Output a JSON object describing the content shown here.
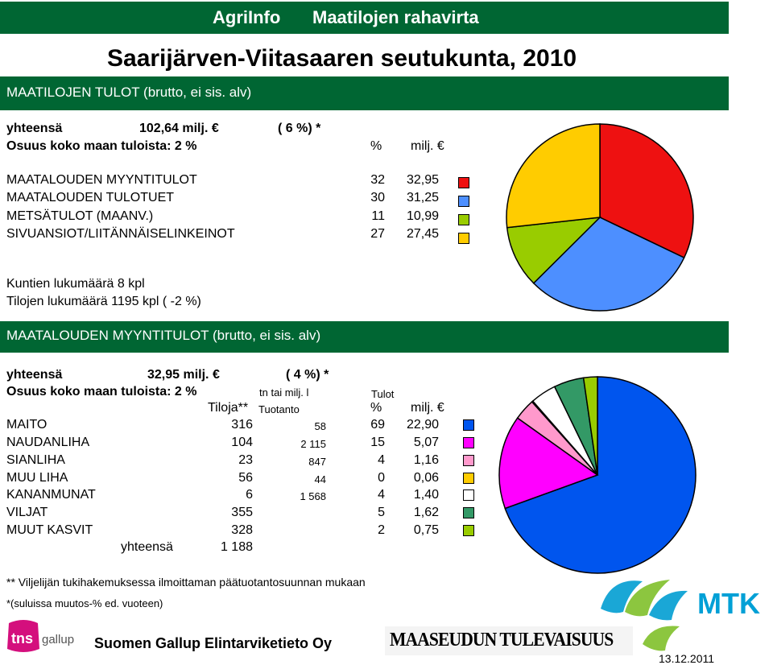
{
  "header": {
    "brand": "AgriInfo",
    "title": "Maatilojen rahavirta",
    "region": "Saarijärven-Viitasaaren seutukunta, 2010"
  },
  "income": {
    "banner": "MAATILOJEN TULOT (brutto, ei sis. alv)",
    "total_label": "yhteensä",
    "total_value": "102,64 milj. €",
    "total_change": "( 6 %) *",
    "share_label": "Osuus koko maan tuloista: 2 %",
    "col_pct": "%",
    "col_value": "milj. €",
    "rows": [
      {
        "label": "MAATALOUDEN MYYNTITULOT",
        "pct": "32",
        "value": "32,95",
        "color": "#ee1111"
      },
      {
        "label": "MAATALOUDEN TULOTUET",
        "pct": "30",
        "value": "31,25",
        "color": "#4d8fff"
      },
      {
        "label": "METSÄTULOT (MAANV.)",
        "pct": "11",
        "value": "10,99",
        "color": "#99cc00"
      },
      {
        "label": "SIVUANSIOT/LIITÄNNÄISELINKEINOT",
        "pct": "27",
        "value": "27,45",
        "color": "#ffcc00"
      }
    ],
    "municipalities": "Kuntien lukumäärä 8 kpl",
    "farms": "Tilojen lukumäärä 1195 kpl ( -2 %)"
  },
  "sales": {
    "banner": "MAATALOUDEN MYYNTITULOT (brutto, ei sis. alv)",
    "total_label": "yhteensä",
    "total_value": "32,95 milj. €",
    "total_change": "( 4 %) *",
    "share_label": "Osuus koko maan tuloista: 2 %",
    "hdr_unit": "tn tai milj. l",
    "hdr_income": "Tulot",
    "hdr_farms": "Tiloja**",
    "hdr_production": "Tuotanto",
    "hdr_pct": "%",
    "hdr_value": "milj. €",
    "rows": [
      {
        "label": "MAITO",
        "farms": "316",
        "production": "58",
        "pct": "69",
        "value": "22,90",
        "color": "#0055ee"
      },
      {
        "label": "NAUDANLIHA",
        "farms": "104",
        "production": "2 115",
        "pct": "15",
        "value": "5,07",
        "color": "#ff00ff"
      },
      {
        "label": "SIANLIHA",
        "farms": "23",
        "production": "847",
        "pct": "4",
        "value": "1,16",
        "color": "#ff99cc"
      },
      {
        "label": "MUU LIHA",
        "farms": "56",
        "production": "44",
        "pct": "0",
        "value": "0,06",
        "color": "#ffcc00"
      },
      {
        "label": "KANANMUNAT",
        "farms": "6",
        "production": "1 568",
        "pct": "4",
        "value": "1,40",
        "color": "#ffffff"
      },
      {
        "label": "VILJAT",
        "farms": "355",
        "production": "",
        "pct": "5",
        "value": "1,62",
        "color": "#339966"
      },
      {
        "label": "MUUT KASVIT",
        "farms": "328",
        "production": "",
        "pct": "2",
        "value": "0,75",
        "color": "#99cc00"
      }
    ],
    "sum_label": "yhteensä",
    "sum_farms": "1 188"
  },
  "footer": {
    "note1": "** Viljelijän tukihakemuksessa ilmoittaman päätuotantosuunnan mukaan",
    "note2": "*(suluissa muutos-% ed. vuoteen)",
    "tns_mark": "tns",
    "tns_text": "gallup",
    "company": "Suomen Gallup Elintarviketieto Oy",
    "maaseudun": "MAASEUDUN TULEVAISUUS",
    "mtk": "MTK",
    "date": "13.12.2011"
  }
}
